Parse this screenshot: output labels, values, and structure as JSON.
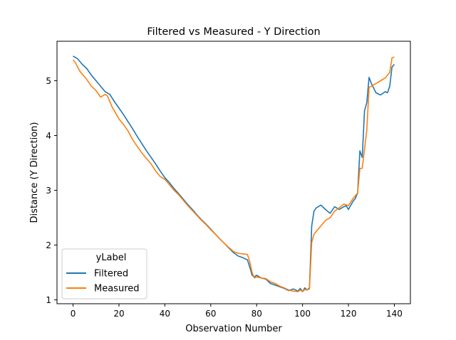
{
  "chart_data": {
    "type": "line",
    "title": "Filtered vs Measured - Y Direction",
    "xlabel": "Observation Number",
    "ylabel": "Distance (Y Direction)",
    "xlim": [
      -7,
      147
    ],
    "ylim": [
      0.93,
      5.72
    ],
    "xticks": [
      0,
      20,
      40,
      60,
      80,
      100,
      120,
      140
    ],
    "yticks": [
      1,
      2,
      3,
      4,
      5
    ],
    "grid": false,
    "legend": {
      "title": "yLabel",
      "placement": "lower-left"
    },
    "colors": {
      "Filtered": "#1f77b4",
      "Measured": "#ff7f0e"
    },
    "series": [
      {
        "name": "Filtered",
        "x": [
          0,
          2,
          4,
          6,
          8,
          10,
          12,
          14,
          16,
          18,
          20,
          22,
          24,
          26,
          28,
          30,
          32,
          34,
          36,
          38,
          40,
          42,
          44,
          46,
          48,
          50,
          52,
          54,
          56,
          58,
          60,
          62,
          64,
          66,
          68,
          70,
          72,
          74,
          76,
          77,
          78,
          79,
          80,
          82,
          84,
          86,
          88,
          90,
          92,
          94,
          96,
          98,
          99,
          100,
          101,
          102,
          103,
          104,
          105,
          106,
          108,
          110,
          112,
          114,
          116,
          118,
          119,
          120,
          122,
          123,
          124,
          125,
          126,
          127,
          128,
          129,
          130,
          132,
          134,
          135,
          136,
          137,
          138,
          139,
          140
        ],
        "y": [
          5.45,
          5.4,
          5.3,
          5.22,
          5.1,
          5.0,
          4.9,
          4.8,
          4.75,
          4.62,
          4.5,
          4.38,
          4.25,
          4.12,
          3.98,
          3.85,
          3.72,
          3.6,
          3.48,
          3.35,
          3.23,
          3.14,
          3.03,
          2.94,
          2.84,
          2.74,
          2.65,
          2.55,
          2.46,
          2.38,
          2.29,
          2.2,
          2.11,
          2.03,
          1.94,
          1.86,
          1.8,
          1.77,
          1.73,
          1.6,
          1.45,
          1.42,
          1.45,
          1.4,
          1.38,
          1.3,
          1.27,
          1.24,
          1.21,
          1.17,
          1.2,
          1.16,
          1.21,
          1.15,
          1.22,
          1.18,
          1.22,
          2.35,
          2.62,
          2.68,
          2.73,
          2.65,
          2.58,
          2.7,
          2.65,
          2.7,
          2.72,
          2.65,
          2.8,
          2.85,
          2.95,
          3.72,
          3.6,
          4.45,
          4.6,
          5.06,
          4.95,
          4.78,
          4.74,
          4.77,
          4.8,
          4.78,
          4.9,
          5.25,
          5.3
        ]
      },
      {
        "name": "Measured",
        "x": [
          0,
          1,
          2,
          3,
          4,
          6,
          8,
          10,
          12,
          14,
          15,
          16,
          17,
          18,
          20,
          22,
          24,
          26,
          28,
          30,
          32,
          34,
          36,
          38,
          40,
          42,
          44,
          46,
          48,
          50,
          52,
          54,
          56,
          58,
          60,
          62,
          64,
          66,
          68,
          70,
          72,
          74,
          76,
          77,
          78,
          79,
          80,
          82,
          84,
          86,
          88,
          90,
          92,
          94,
          96,
          98,
          99,
          100,
          101,
          102,
          103,
          104,
          105,
          106,
          108,
          110,
          112,
          114,
          116,
          118,
          120,
          122,
          124,
          125,
          126,
          127,
          128,
          129,
          130,
          132,
          134,
          136,
          138,
          139,
          140
        ],
        "y": [
          5.38,
          5.33,
          5.25,
          5.17,
          5.12,
          5.02,
          4.9,
          4.82,
          4.7,
          4.75,
          4.72,
          4.62,
          4.52,
          4.45,
          4.3,
          4.2,
          4.08,
          3.92,
          3.8,
          3.68,
          3.58,
          3.48,
          3.35,
          3.25,
          3.2,
          3.1,
          3.0,
          2.92,
          2.82,
          2.72,
          2.63,
          2.54,
          2.45,
          2.37,
          2.28,
          2.2,
          2.11,
          2.03,
          1.95,
          1.88,
          1.85,
          1.84,
          1.83,
          1.7,
          1.5,
          1.4,
          1.42,
          1.4,
          1.39,
          1.33,
          1.3,
          1.25,
          1.22,
          1.18,
          1.16,
          1.15,
          1.18,
          1.15,
          1.19,
          1.18,
          1.2,
          2.05,
          2.2,
          2.25,
          2.35,
          2.45,
          2.5,
          2.62,
          2.68,
          2.75,
          2.72,
          2.85,
          2.95,
          3.4,
          3.4,
          3.75,
          4.1,
          4.88,
          4.9,
          4.95,
          5.0,
          5.05,
          5.15,
          5.42,
          5.43
        ]
      }
    ]
  }
}
